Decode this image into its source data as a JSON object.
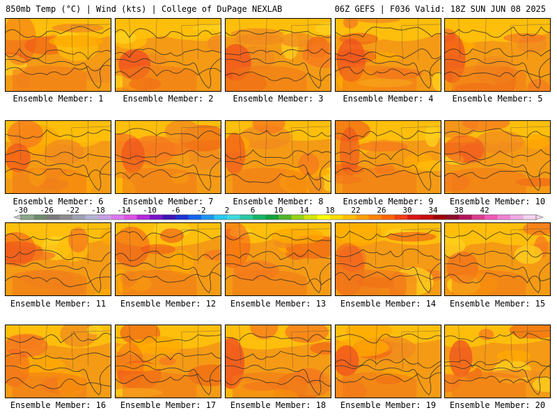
{
  "header": {
    "title_left": "850mb Temp (°C) | Wind (kts) | College of DuPage NEXLAB",
    "title_right": "06Z GEFS | F036 Valid: 18Z SUN JUN 08 2025"
  },
  "panels": [
    {
      "label": "Ensemble Member: 1"
    },
    {
      "label": "Ensemble Member: 2"
    },
    {
      "label": "Ensemble Member: 3"
    },
    {
      "label": "Ensemble Member: 4"
    },
    {
      "label": "Ensemble Member: 5"
    },
    {
      "label": "Ensemble Member: 6"
    },
    {
      "label": "Ensemble Member: 7"
    },
    {
      "label": "Ensemble Member: 8"
    },
    {
      "label": "Ensemble Member: 9"
    },
    {
      "label": "Ensemble Member: 10"
    },
    {
      "label": "Ensemble Member: 11"
    },
    {
      "label": "Ensemble Member: 12"
    },
    {
      "label": "Ensemble Member: 13"
    },
    {
      "label": "Ensemble Member: 14"
    },
    {
      "label": "Ensemble Member: 15"
    },
    {
      "label": "Ensemble Member: 16"
    },
    {
      "label": "Ensemble Member: 17"
    },
    {
      "label": "Ensemble Member: 18"
    },
    {
      "label": "Ensemble Member: 19"
    },
    {
      "label": "Ensemble Member: 20"
    }
  ],
  "colorbar": {
    "labels": [
      "-30",
      "-26",
      "-22",
      "-18",
      "-14",
      "-10",
      "-6",
      "-2",
      "2",
      "6",
      "10",
      "14",
      "18",
      "22",
      "26",
      "30",
      "34",
      "38",
      "42"
    ],
    "colors": [
      "#8aa68a",
      "#6e8a6e",
      "#7a7a7a",
      "#8c8c8c",
      "#a0a0b4",
      "#b4b4d2",
      "#c8a0e6",
      "#dc78f0",
      "#e050e6",
      "#b428dc",
      "#7814c8",
      "#3c14b4",
      "#1e32d2",
      "#1464f0",
      "#1e96f0",
      "#28c8f0",
      "#3cdcdc",
      "#28c8a0",
      "#14b464",
      "#14a03c",
      "#50b428",
      "#96d214",
      "#d2e60a",
      "#ffff00",
      "#ffdc00",
      "#ffbe00",
      "#ffa000",
      "#ff8200",
      "#ff6400",
      "#f03c14",
      "#dc1414",
      "#c80a0a",
      "#a00000",
      "#8c0a28",
      "#b4145a",
      "#dc3c8c",
      "#f05ab4",
      "#f082d2",
      "#f0aae6",
      "#f5d2f0"
    ]
  }
}
